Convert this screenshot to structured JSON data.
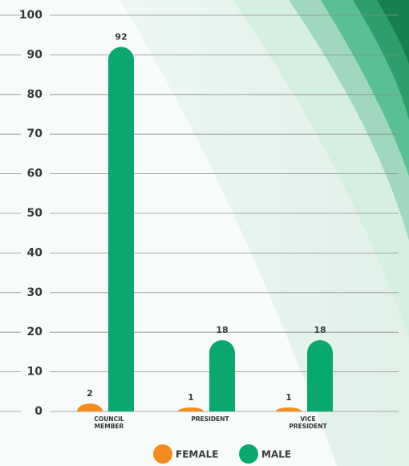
{
  "chart_data": {
    "type": "bar",
    "categories": [
      "COUNCIL MEMBER",
      "PRESIDENT",
      "VICE PRESIDENT"
    ],
    "series": [
      {
        "name": "FEMALE",
        "color": "#f28c1e",
        "values": [
          2,
          1,
          1
        ]
      },
      {
        "name": "MALE",
        "color": "#0aa86f",
        "values": [
          92,
          18,
          18
        ]
      }
    ],
    "ylim": [
      0,
      100
    ],
    "yticks": [
      0,
      10,
      20,
      30,
      40,
      50,
      60,
      70,
      80,
      90,
      100
    ],
    "grid": true
  }
}
